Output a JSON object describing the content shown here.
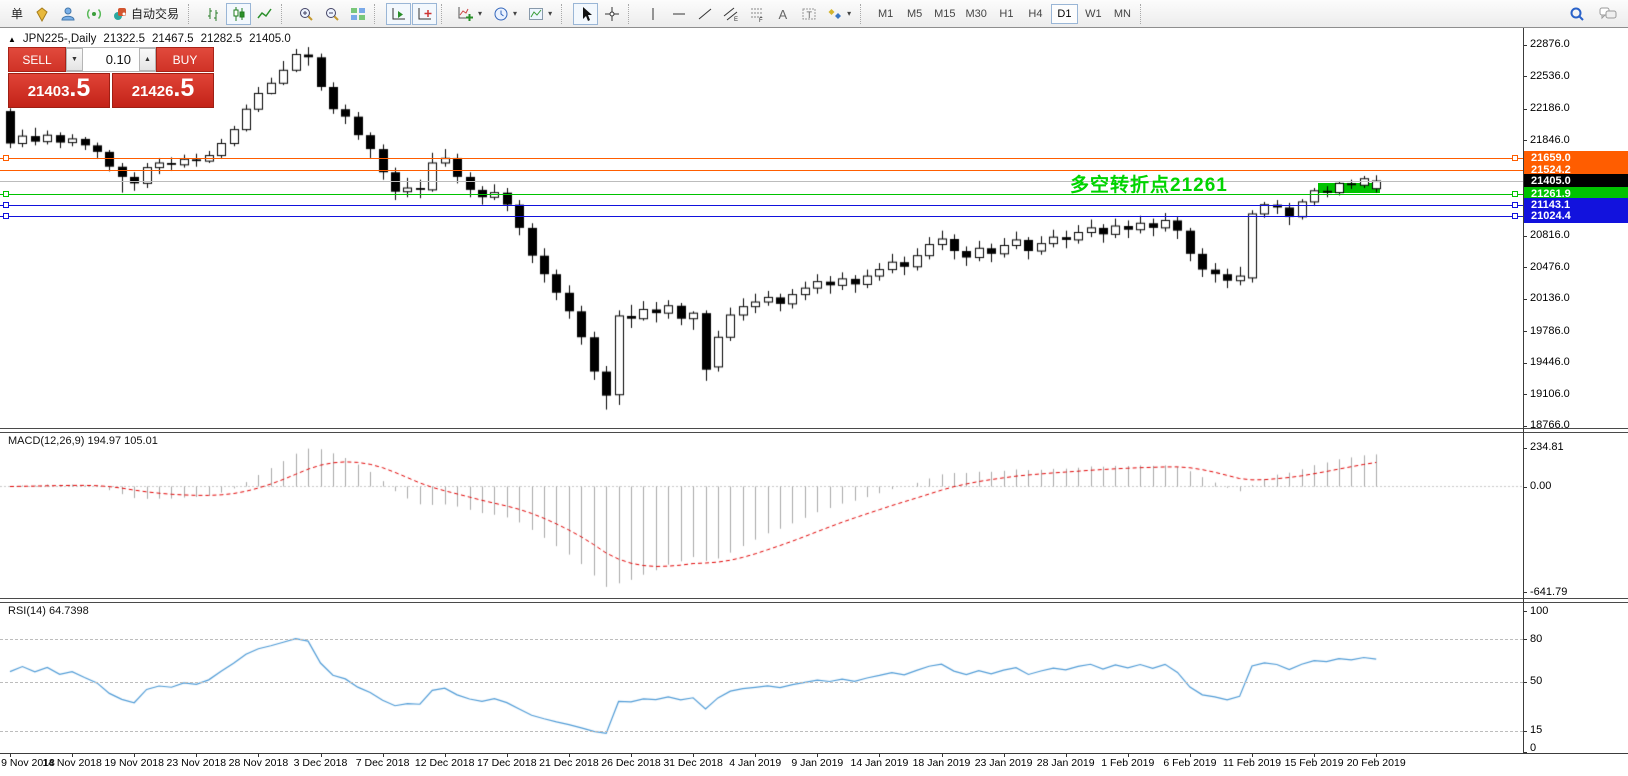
{
  "toolbar": {
    "new_order_label": "单",
    "autotrading_label": "自动交易",
    "timeframes": [
      {
        "label": "M1",
        "active": false
      },
      {
        "label": "M5",
        "active": false
      },
      {
        "label": "M15",
        "active": false
      },
      {
        "label": "M30",
        "active": false
      },
      {
        "label": "H1",
        "active": false
      },
      {
        "label": "H4",
        "active": false
      },
      {
        "label": "D1",
        "active": true
      },
      {
        "label": "W1",
        "active": false
      },
      {
        "label": "MN",
        "active": false
      }
    ]
  },
  "chart": {
    "symbol_title": "JPN225-,Daily",
    "open": "21322.5",
    "high": "21467.5",
    "low": "21282.5",
    "close": "21405.0"
  },
  "one_click": {
    "sell_label": "SELL",
    "buy_label": "BUY",
    "volume": "0.10",
    "sell_price": "21403",
    "sell_frac": ".5",
    "buy_price": "21426",
    "buy_frac": ".5"
  },
  "price_axis": [
    {
      "label": "22876.0",
      "price": 22876.0
    },
    {
      "label": "22536.0",
      "price": 22536.0
    },
    {
      "label": "22186.0",
      "price": 22186.0
    },
    {
      "label": "21846.0",
      "price": 21846.0
    },
    {
      "label": "20816.0",
      "price": 20816.0
    },
    {
      "label": "20476.0",
      "price": 20476.0
    },
    {
      "label": "20136.0",
      "price": 20136.0
    },
    {
      "label": "19786.0",
      "price": 19786.0
    },
    {
      "label": "19446.0",
      "price": 19446.0
    },
    {
      "label": "19106.0",
      "price": 19106.0
    },
    {
      "label": "18766.0",
      "price": 18766.0
    }
  ],
  "price_tags": [
    {
      "label": "21659.0",
      "price": 21659.0,
      "bg": "#ff5d00"
    },
    {
      "label": "21524.2",
      "price": 21524.2,
      "bg": "#ff5d00"
    },
    {
      "label": "21405.0",
      "price": 21405.0,
      "bg": "#000000"
    },
    {
      "label": "21261.9",
      "price": 21261.9,
      "bg": "#00c300"
    },
    {
      "label": "21143.1",
      "price": 21143.1,
      "bg": "#1212dd"
    },
    {
      "label": "21024.4",
      "price": 21024.4,
      "bg": "#1212dd"
    }
  ],
  "hlines": [
    {
      "price": 21659.0,
      "color": "#ff5d00",
      "handles": true
    },
    {
      "price": 21524.2,
      "color": "#ff5d00",
      "handles": false
    },
    {
      "price": 21410.0,
      "color": "#bcbcbc",
      "handles": false
    },
    {
      "price": 21261.9,
      "color": "#00c300",
      "handles": true
    },
    {
      "price": 21143.1,
      "color": "#1212dd",
      "handles": true
    },
    {
      "price": 21024.4,
      "color": "#1212dd",
      "handles": true
    }
  ],
  "annotation": {
    "text": "多空转折点21261",
    "color": "#00d400"
  },
  "green_box": {
    "color": "#00c300"
  },
  "macd": {
    "label": "MACD(12,26,9) 194.97 105.01",
    "axis": [
      {
        "label": "234.81",
        "value": 234.81
      },
      {
        "label": "0.00",
        "value": 0
      },
      {
        "label": "-641.79",
        "value": -641.79
      }
    ]
  },
  "rsi": {
    "label": "RSI(14) 64.7398",
    "axis": [
      {
        "label": "100",
        "value": 100
      },
      {
        "label": "80",
        "value": 80
      },
      {
        "label": "50",
        "value": 50
      },
      {
        "label": "15",
        "value": 15
      },
      {
        "label": "0",
        "value": 0
      }
    ],
    "dashed_levels": [
      80,
      50,
      15
    ]
  },
  "date_axis": [
    "9 Nov 2018",
    "14 Nov 2018",
    "19 Nov 2018",
    "23 Nov 2018",
    "28 Nov 2018",
    "3 Dec 2018",
    "7 Dec 2018",
    "12 Dec 2018",
    "17 Dec 2018",
    "21 Dec 2018",
    "26 Dec 2018",
    "31 Dec 2018",
    "4 Jan 2019",
    "9 Jan 2019",
    "14 Jan 2019",
    "18 Jan 2019",
    "23 Jan 2019",
    "28 Jan 2019",
    "1 Feb 2019",
    "6 Feb 2019",
    "11 Feb 2019",
    "15 Feb 2019",
    "20 Feb 2019"
  ],
  "chart_data": {
    "type": "candlestick",
    "symbol": "JPN225-",
    "period": "Daily",
    "price_range": [
      18766.0,
      22876.0
    ],
    "today_ohlc": [
      21322.5,
      21467.5,
      21282.5,
      21405.0
    ],
    "indicators": [
      {
        "name": "MACD",
        "params": [
          12,
          26,
          9
        ],
        "current": [
          194.97,
          105.01
        ],
        "range": [
          -641.79,
          234.81
        ]
      },
      {
        "name": "RSI",
        "params": [
          14
        ],
        "current": 64.7398,
        "range": [
          0,
          100
        ]
      }
    ],
    "candles": [
      [
        22160,
        22190,
        21760,
        21810
      ],
      [
        21810,
        21960,
        21770,
        21890
      ],
      [
        21890,
        21980,
        21790,
        21830
      ],
      [
        21830,
        21950,
        21800,
        21900
      ],
      [
        21900,
        21930,
        21760,
        21820
      ],
      [
        21820,
        21910,
        21780,
        21860
      ],
      [
        21860,
        21880,
        21740,
        21790
      ],
      [
        21790,
        21820,
        21650,
        21720
      ],
      [
        21720,
        21740,
        21510,
        21560
      ],
      [
        21560,
        21600,
        21280,
        21450
      ],
      [
        21450,
        21500,
        21300,
        21380
      ],
      [
        21380,
        21600,
        21330,
        21550
      ],
      [
        21550,
        21650,
        21480,
        21600
      ],
      [
        21600,
        21660,
        21520,
        21580
      ],
      [
        21580,
        21690,
        21550,
        21640
      ],
      [
        21640,
        21700,
        21560,
        21620
      ],
      [
        21620,
        21730,
        21600,
        21680
      ],
      [
        21680,
        21860,
        21650,
        21810
      ],
      [
        21810,
        22000,
        21780,
        21960
      ],
      [
        21960,
        22230,
        21940,
        22180
      ],
      [
        22180,
        22420,
        22150,
        22350
      ],
      [
        22350,
        22520,
        22340,
        22460
      ],
      [
        22460,
        22700,
        22440,
        22600
      ],
      [
        22600,
        22830,
        22580,
        22770
      ],
      [
        22770,
        22850,
        22650,
        22740
      ],
      [
        22740,
        22780,
        22380,
        22420
      ],
      [
        22420,
        22470,
        22130,
        22180
      ],
      [
        22180,
        22230,
        22020,
        22100
      ],
      [
        22100,
        22150,
        21850,
        21900
      ],
      [
        21900,
        21930,
        21650,
        21750
      ],
      [
        21750,
        21800,
        21420,
        21500
      ],
      [
        21500,
        21550,
        21200,
        21290
      ],
      [
        21290,
        21440,
        21230,
        21330
      ],
      [
        21330,
        21420,
        21220,
        21310
      ],
      [
        21310,
        21710,
        21290,
        21600
      ],
      [
        21600,
        21750,
        21560,
        21650
      ],
      [
        21650,
        21700,
        21380,
        21450
      ],
      [
        21450,
        21500,
        21230,
        21310
      ],
      [
        21310,
        21350,
        21150,
        21230
      ],
      [
        21230,
        21370,
        21200,
        21280
      ],
      [
        21280,
        21330,
        21080,
        21150
      ],
      [
        21150,
        21200,
        20820,
        20900
      ],
      [
        20900,
        20950,
        20520,
        20600
      ],
      [
        20600,
        20680,
        20310,
        20400
      ],
      [
        20400,
        20450,
        20120,
        20200
      ],
      [
        20200,
        20280,
        19920,
        20000
      ],
      [
        20000,
        20060,
        19640,
        19720
      ],
      [
        19720,
        19780,
        19260,
        19350
      ],
      [
        19350,
        19410,
        18940,
        19090
      ],
      [
        19100,
        20010,
        18990,
        19950
      ],
      [
        19950,
        20070,
        19820,
        19920
      ],
      [
        19920,
        20110,
        19900,
        20020
      ],
      [
        20020,
        20100,
        19880,
        19980
      ],
      [
        19980,
        20120,
        19920,
        20060
      ],
      [
        20060,
        20090,
        19850,
        19920
      ],
      [
        19920,
        20000,
        19800,
        19980
      ],
      [
        19980,
        20010,
        19250,
        19370
      ],
      [
        19400,
        19790,
        19350,
        19720
      ],
      [
        19720,
        20040,
        19680,
        19960
      ],
      [
        19960,
        20140,
        19900,
        20050
      ],
      [
        20050,
        20190,
        19980,
        20100
      ],
      [
        20100,
        20220,
        20060,
        20150
      ],
      [
        20150,
        20190,
        20000,
        20080
      ],
      [
        20080,
        20240,
        20030,
        20180
      ],
      [
        20180,
        20320,
        20120,
        20250
      ],
      [
        20250,
        20400,
        20190,
        20320
      ],
      [
        20320,
        20380,
        20190,
        20280
      ],
      [
        20280,
        20420,
        20230,
        20350
      ],
      [
        20350,
        20390,
        20200,
        20290
      ],
      [
        20290,
        20450,
        20250,
        20380
      ],
      [
        20380,
        20520,
        20330,
        20450
      ],
      [
        20450,
        20620,
        20410,
        20530
      ],
      [
        20530,
        20590,
        20390,
        20480
      ],
      [
        20480,
        20680,
        20440,
        20600
      ],
      [
        20600,
        20800,
        20560,
        20720
      ],
      [
        20720,
        20870,
        20660,
        20780
      ],
      [
        20780,
        20830,
        20560,
        20650
      ],
      [
        20650,
        20700,
        20490,
        20580
      ],
      [
        20580,
        20760,
        20540,
        20680
      ],
      [
        20680,
        20730,
        20530,
        20620
      ],
      [
        20620,
        20790,
        20580,
        20710
      ],
      [
        20710,
        20860,
        20670,
        20770
      ],
      [
        20770,
        20800,
        20560,
        20650
      ],
      [
        20650,
        20810,
        20610,
        20730
      ],
      [
        20730,
        20880,
        20690,
        20800
      ],
      [
        20800,
        20870,
        20680,
        20770
      ],
      [
        20770,
        20930,
        20730,
        20850
      ],
      [
        20850,
        20990,
        20800,
        20900
      ],
      [
        20900,
        20940,
        20740,
        20830
      ],
      [
        20830,
        21000,
        20790,
        20920
      ],
      [
        20920,
        20980,
        20790,
        20880
      ],
      [
        20880,
        21030,
        20840,
        20950
      ],
      [
        20950,
        21000,
        20810,
        20900
      ],
      [
        20900,
        21060,
        20860,
        20980
      ],
      [
        20980,
        21020,
        20780,
        20870
      ],
      [
        20870,
        20900,
        20540,
        20620
      ],
      [
        20620,
        20680,
        20370,
        20450
      ],
      [
        20450,
        20520,
        20310,
        20400
      ],
      [
        20400,
        20460,
        20250,
        20330
      ],
      [
        20330,
        20480,
        20280,
        20380
      ],
      [
        20360,
        21090,
        20310,
        21050
      ],
      [
        21050,
        21180,
        21010,
        21150
      ],
      [
        21150,
        21200,
        21050,
        21120
      ],
      [
        21120,
        21170,
        20930,
        21020
      ],
      [
        21020,
        21210,
        20990,
        21180
      ],
      [
        21180,
        21330,
        21140,
        21300
      ],
      [
        21300,
        21350,
        21230,
        21280
      ],
      [
        21280,
        21400,
        21250,
        21380
      ],
      [
        21380,
        21420,
        21320,
        21360
      ],
      [
        21360,
        21460,
        21330,
        21430
      ],
      [
        21322.5,
        21467.5,
        21282.5,
        21405.0
      ]
    ]
  }
}
